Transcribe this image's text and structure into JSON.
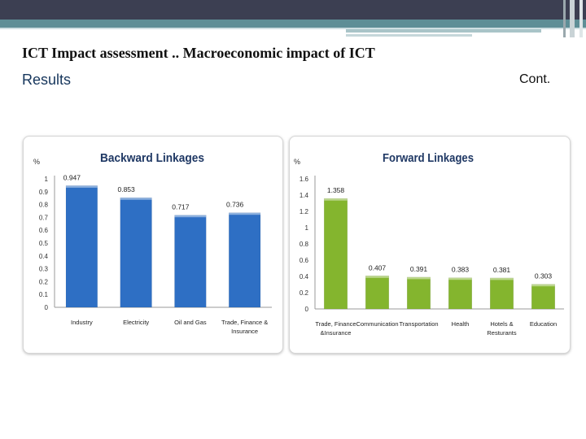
{
  "slide": {
    "title": "ICT Impact assessment .. Macroeconomic impact of ICT",
    "subtitle": "Results",
    "cont": "Cont."
  },
  "chart_data": [
    {
      "type": "bar",
      "title": "Backward Linkages",
      "ylabel": "%",
      "categories": [
        "Industry",
        "Electricity",
        "Oil and Gas",
        "Trade, Finance & Insurance"
      ],
      "values": [
        0.947,
        0.853,
        0.717,
        0.736
      ],
      "labels": [
        "0.947",
        "0.853",
        "0.717",
        "0.736"
      ],
      "ylim": [
        0,
        1
      ],
      "yticks": [
        "0",
        "0.1",
        "0.2",
        "0.3",
        "0.4",
        "0.5",
        "0.6",
        "0.7",
        "0.8",
        "0.9",
        "1"
      ],
      "bar_color": "#2e6fc4",
      "grid": false
    },
    {
      "type": "bar",
      "title": "Forward Linkages",
      "ylabel": "%",
      "categories": [
        "Trade, Finance &Insurance",
        "Communication",
        "Transportation",
        "Health",
        "Hotels & Resturants",
        "Education"
      ],
      "values": [
        1.358,
        0.407,
        0.391,
        0.383,
        0.381,
        0.303
      ],
      "labels": [
        "1.358",
        "0.407",
        "0.391",
        "0.383",
        "0.381",
        "0.303"
      ],
      "ylim": [
        0,
        1.6
      ],
      "yticks": [
        "0",
        "0.2",
        "0.4",
        "0.6",
        "0.8",
        "1",
        "1.2",
        "1.4",
        "1.6"
      ],
      "bar_color": "#84b52e",
      "grid": false
    }
  ]
}
